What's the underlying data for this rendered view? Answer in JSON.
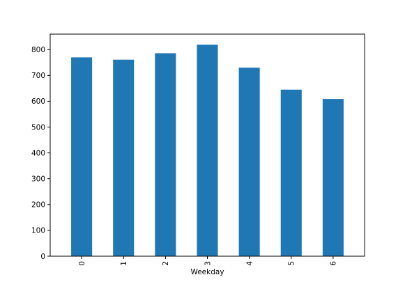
{
  "chart_data": {
    "type": "bar",
    "title": "",
    "xlabel": "Weekday",
    "ylabel": "",
    "categories": [
      "0",
      "1",
      "2",
      "3",
      "4",
      "5",
      "6"
    ],
    "values": [
      770,
      761,
      786,
      819,
      730,
      645,
      609
    ],
    "ylim": [
      0,
      860
    ],
    "yticks": [
      0,
      100,
      200,
      300,
      400,
      500,
      600,
      700,
      800
    ],
    "bar_color": "#1f77b4",
    "grid": false,
    "legend": "none"
  }
}
